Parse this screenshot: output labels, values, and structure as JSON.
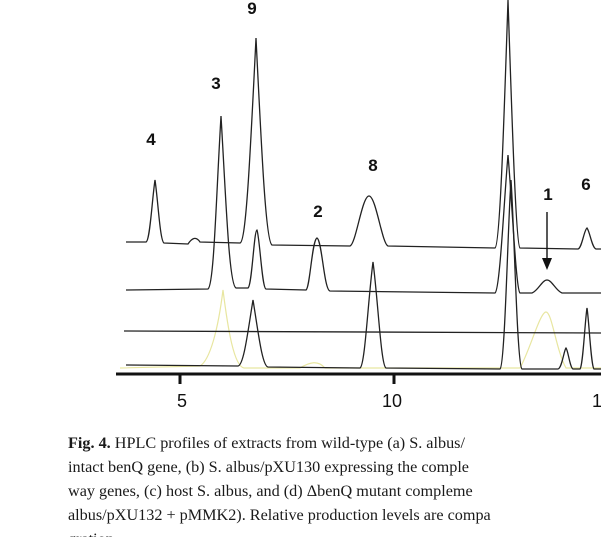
{
  "figure": {
    "peak_labels": [
      "9",
      "3",
      "4",
      "8",
      "2",
      "1",
      "6"
    ],
    "x_tick_labels": [
      "5",
      "10",
      "1"
    ],
    "trace_colors": {
      "a": "#222222",
      "b": "#222222",
      "c": "#222222",
      "d": "#222222",
      "faint_overlay": "#e8e6a0"
    }
  },
  "caption": {
    "line1": {
      "fig_label": "Fig. 4.",
      "text": " HPLC profiles of extracts from wild-type (a) S. albus/"
    },
    "line2": "intact benQ gene, (b) S. albus/pXU130 expressing the comple",
    "line3": "way genes, (c) host S. albus, and (d) ΔbenQ mutant compleme",
    "line4": "albus/pXU132 + pMMK2). Relative production levels are compa",
    "line5": "gration"
  }
}
